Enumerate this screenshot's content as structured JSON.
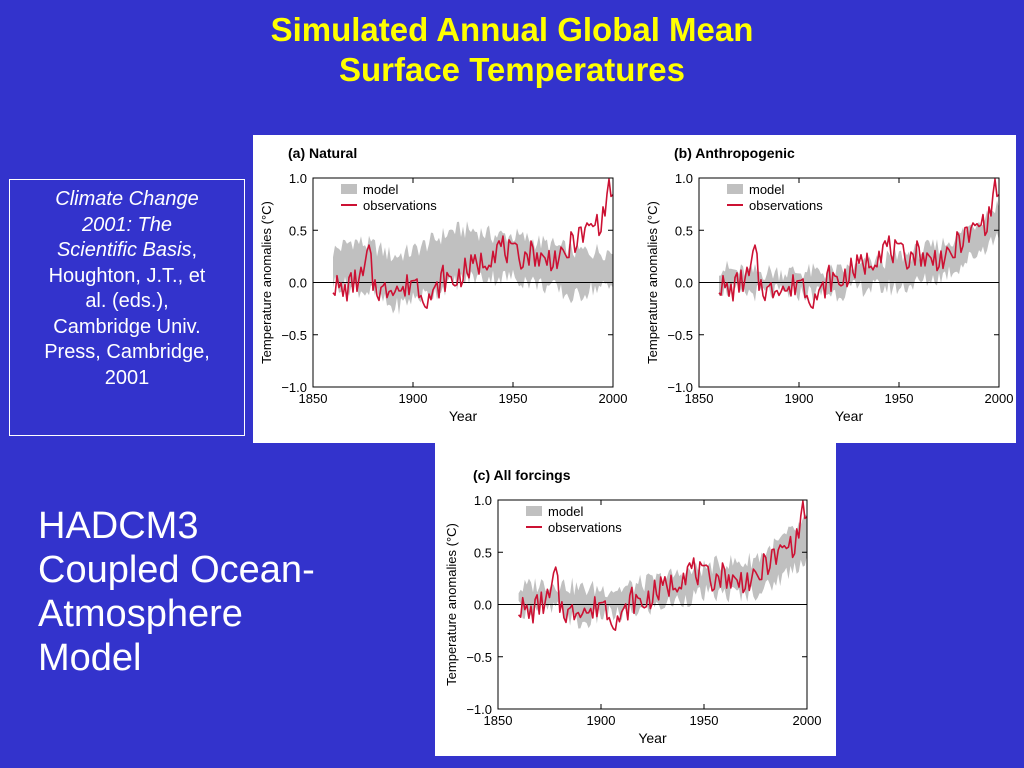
{
  "slide": {
    "title_line1": "Simulated Annual Global Mean",
    "title_line2": "Surface Temperatures",
    "citation": {
      "italic_1": "Climate Change",
      "italic_2": "2001: The",
      "italic_3": "Scientific Basis",
      "text_3_suffix": ",",
      "text_4": "Houghton, J.T., et",
      "text_5": "al. (eds.),",
      "text_6": "Cambridge Univ.",
      "text_7": "Press, Cambridge,",
      "text_8": "2001"
    },
    "model_label": {
      "line1": "HADCM3",
      "line2": "Coupled Ocean-",
      "line3": "Atmosphere",
      "line4": "Model"
    }
  },
  "colors": {
    "background": "#3333cc",
    "title": "#ffff00",
    "model_band": "#c0c0c0",
    "observations": "#cc1133"
  },
  "chart_data": [
    {
      "id": "a",
      "type": "line",
      "title": "(a) Natural",
      "xlabel": "Year",
      "ylabel": "Temperature anomalies (°C)",
      "xlim": [
        1850,
        2000
      ],
      "ylim": [
        -1.0,
        1.0
      ],
      "xticks": [
        1850,
        1900,
        1950,
        2000
      ],
      "yticks": [
        -1.0,
        -0.5,
        0.0,
        0.5,
        1.0
      ],
      "ytick_labels": [
        "−1.0",
        "−0.5",
        "0.0",
        "0.5",
        "1.0"
      ],
      "legend": {
        "position": "top-left",
        "model_label": "model",
        "obs_label": "observations"
      },
      "series": [
        {
          "name": "model",
          "kind": "band",
          "x": [
            1860,
            1870,
            1880,
            1890,
            1900,
            1910,
            1920,
            1930,
            1940,
            1950,
            1960,
            1970,
            1980,
            1990,
            2000
          ],
          "lower": [
            0.0,
            -0.05,
            -0.1,
            -0.25,
            -0.15,
            -0.1,
            0.0,
            0.05,
            0.05,
            0.05,
            0.0,
            -0.05,
            -0.15,
            -0.05,
            -0.05
          ],
          "upper": [
            0.3,
            0.4,
            0.35,
            0.25,
            0.3,
            0.4,
            0.5,
            0.5,
            0.45,
            0.45,
            0.4,
            0.35,
            0.3,
            0.3,
            0.3
          ]
        },
        {
          "name": "observations",
          "kind": "line",
          "x": [
            1860,
            1865,
            1870,
            1875,
            1878,
            1880,
            1885,
            1890,
            1895,
            1900,
            1905,
            1910,
            1915,
            1920,
            1925,
            1930,
            1935,
            1940,
            1944,
            1950,
            1955,
            1960,
            1965,
            1970,
            1975,
            1980,
            1985,
            1990,
            1995,
            1998,
            2000
          ],
          "y": [
            0.0,
            -0.1,
            0.0,
            0.05,
            0.3,
            0.0,
            -0.1,
            0.0,
            -0.1,
            0.05,
            -0.1,
            -0.15,
            0.05,
            0.0,
            0.1,
            0.15,
            0.2,
            0.3,
            0.35,
            0.25,
            0.25,
            0.3,
            0.2,
            0.25,
            0.2,
            0.4,
            0.45,
            0.55,
            0.6,
            0.95,
            0.75
          ]
        }
      ]
    },
    {
      "id": "b",
      "type": "line",
      "title": "(b) Anthropogenic",
      "xlabel": "Year",
      "ylabel": "Temperature anomalies (°C)",
      "xlim": [
        1850,
        2000
      ],
      "ylim": [
        -1.0,
        1.0
      ],
      "xticks": [
        1850,
        1900,
        1950,
        2000
      ],
      "yticks": [
        -1.0,
        -0.5,
        0.0,
        0.5,
        1.0
      ],
      "ytick_labels": [
        "−1.0",
        "−0.5",
        "0.0",
        "0.5",
        "1.0"
      ],
      "legend": {
        "position": "top-left",
        "model_label": "model",
        "obs_label": "observations"
      },
      "series": [
        {
          "name": "model",
          "kind": "band",
          "x": [
            1860,
            1870,
            1880,
            1890,
            1900,
            1910,
            1920,
            1930,
            1940,
            1950,
            1960,
            1970,
            1980,
            1990,
            2000
          ],
          "lower": [
            -0.05,
            -0.1,
            -0.1,
            -0.1,
            -0.1,
            -0.1,
            -0.1,
            -0.05,
            -0.05,
            -0.05,
            0.0,
            0.05,
            0.15,
            0.3,
            0.45
          ],
          "upper": [
            0.15,
            0.1,
            0.1,
            0.1,
            0.1,
            0.1,
            0.1,
            0.15,
            0.2,
            0.25,
            0.3,
            0.35,
            0.45,
            0.6,
            0.75
          ]
        },
        {
          "name": "observations",
          "kind": "line",
          "x": [
            1860,
            1865,
            1870,
            1875,
            1878,
            1880,
            1885,
            1890,
            1895,
            1900,
            1905,
            1910,
            1915,
            1920,
            1925,
            1930,
            1935,
            1940,
            1944,
            1950,
            1955,
            1960,
            1965,
            1970,
            1975,
            1980,
            1985,
            1990,
            1995,
            1998,
            2000
          ],
          "y": [
            0.0,
            -0.1,
            0.0,
            0.05,
            0.3,
            0.0,
            -0.1,
            0.0,
            -0.1,
            0.05,
            -0.1,
            -0.15,
            0.05,
            0.0,
            0.1,
            0.15,
            0.2,
            0.3,
            0.35,
            0.25,
            0.25,
            0.3,
            0.2,
            0.25,
            0.2,
            0.4,
            0.45,
            0.55,
            0.6,
            0.95,
            0.75
          ]
        }
      ]
    },
    {
      "id": "c",
      "type": "line",
      "title": "(c) All forcings",
      "xlabel": "Year",
      "ylabel": "Temperature anomalies (°C)",
      "xlim": [
        1850,
        2000
      ],
      "ylim": [
        -1.0,
        1.0
      ],
      "xticks": [
        1850,
        1900,
        1950,
        2000
      ],
      "yticks": [
        -1.0,
        -0.5,
        0.0,
        0.5,
        1.0
      ],
      "ytick_labels": [
        "−1.0",
        "−0.5",
        "0.0",
        "0.5",
        "1.0"
      ],
      "legend": {
        "position": "top-left",
        "model_label": "model",
        "obs_label": "observations"
      },
      "series": [
        {
          "name": "model",
          "kind": "band",
          "x": [
            1860,
            1870,
            1880,
            1890,
            1900,
            1910,
            1920,
            1930,
            1940,
            1950,
            1960,
            1970,
            1980,
            1990,
            2000
          ],
          "lower": [
            -0.05,
            -0.05,
            -0.05,
            -0.2,
            -0.1,
            -0.1,
            -0.05,
            0.0,
            0.05,
            0.1,
            0.1,
            0.1,
            0.15,
            0.3,
            0.45
          ],
          "upper": [
            0.15,
            0.2,
            0.2,
            0.15,
            0.15,
            0.15,
            0.2,
            0.25,
            0.3,
            0.35,
            0.4,
            0.4,
            0.5,
            0.65,
            0.8
          ]
        },
        {
          "name": "observations",
          "kind": "line",
          "x": [
            1860,
            1865,
            1870,
            1875,
            1878,
            1880,
            1885,
            1890,
            1895,
            1900,
            1905,
            1910,
            1915,
            1920,
            1925,
            1930,
            1935,
            1940,
            1944,
            1950,
            1955,
            1960,
            1965,
            1970,
            1975,
            1980,
            1985,
            1990,
            1995,
            1998,
            2000
          ],
          "y": [
            0.0,
            -0.1,
            0.0,
            0.05,
            0.3,
            0.0,
            -0.1,
            0.0,
            -0.1,
            0.05,
            -0.1,
            -0.15,
            0.05,
            0.0,
            0.1,
            0.15,
            0.2,
            0.3,
            0.35,
            0.25,
            0.25,
            0.3,
            0.2,
            0.25,
            0.2,
            0.4,
            0.45,
            0.55,
            0.6,
            0.95,
            0.75
          ]
        }
      ]
    }
  ]
}
